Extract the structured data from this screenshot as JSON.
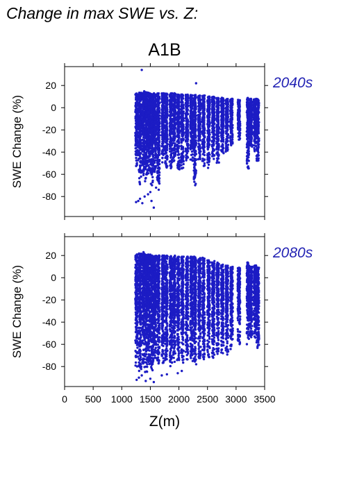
{
  "page": {
    "title": "Change in max SWE vs. Z:",
    "scenario": "A1B"
  },
  "colors": {
    "points": "#1c1cc4",
    "panel_label": "#2323b4",
    "axis": "#000000"
  },
  "chart_data": [
    {
      "type": "scatter",
      "panel_label": "2040s",
      "xlabel": "",
      "ylabel": "SWE Change (%)",
      "xlim": [
        0,
        3500
      ],
      "ylim": [
        -98,
        37
      ],
      "xticks": [
        0,
        500,
        1000,
        1500,
        2000,
        2500,
        3000,
        3500
      ],
      "yticks": [
        20,
        0,
        -20,
        -40,
        -60,
        -80
      ],
      "show_x_tick_labels": false,
      "grid": false,
      "columns": [
        {
          "x": 1260,
          "ymin": -55,
          "ymax": 13
        },
        {
          "x": 1320,
          "ymin": -70,
          "ymax": 14
        },
        {
          "x": 1380,
          "ymin": -62,
          "ymax": 15
        },
        {
          "x": 1430,
          "ymin": -68,
          "ymax": 14
        },
        {
          "x": 1480,
          "ymin": -60,
          "ymax": 14
        },
        {
          "x": 1530,
          "ymin": -70,
          "ymax": 13
        },
        {
          "x": 1580,
          "ymin": -60,
          "ymax": 13
        },
        {
          "x": 1640,
          "ymin": -75,
          "ymax": 13
        },
        {
          "x": 1720,
          "ymin": -50,
          "ymax": 13
        },
        {
          "x": 1780,
          "ymin": -55,
          "ymax": 13
        },
        {
          "x": 1860,
          "ymin": -55,
          "ymax": 13
        },
        {
          "x": 1920,
          "ymin": -50,
          "ymax": 13
        },
        {
          "x": 1990,
          "ymin": -58,
          "ymax": 12
        },
        {
          "x": 2060,
          "ymin": -56,
          "ymax": 12
        },
        {
          "x": 2140,
          "ymin": -50,
          "ymax": 12
        },
        {
          "x": 2220,
          "ymin": -50,
          "ymax": 12
        },
        {
          "x": 2280,
          "ymin": -70,
          "ymax": 12
        },
        {
          "x": 2360,
          "ymin": -50,
          "ymax": 11
        },
        {
          "x": 2430,
          "ymin": -55,
          "ymax": 11
        },
        {
          "x": 2520,
          "ymin": -55,
          "ymax": 10
        },
        {
          "x": 2600,
          "ymin": -47,
          "ymax": 10
        },
        {
          "x": 2680,
          "ymin": -50,
          "ymax": 9
        },
        {
          "x": 2760,
          "ymin": -42,
          "ymax": 9
        },
        {
          "x": 2840,
          "ymin": -40,
          "ymax": 8
        },
        {
          "x": 2920,
          "ymin": -35,
          "ymax": 8
        },
        {
          "x": 3050,
          "ymin": -30,
          "ymax": 7
        },
        {
          "x": 3210,
          "ymin": -55,
          "ymax": 9
        },
        {
          "x": 3260,
          "ymin": -38,
          "ymax": 8
        },
        {
          "x": 3330,
          "ymin": -40,
          "ymax": 8
        },
        {
          "x": 3380,
          "ymin": -50,
          "ymax": 8
        }
      ],
      "outliers": [
        {
          "x": 1350,
          "y": 34
        },
        {
          "x": 2300,
          "y": 22
        },
        {
          "x": 1250,
          "y": -85
        },
        {
          "x": 1290,
          "y": -84
        },
        {
          "x": 1320,
          "y": -82
        },
        {
          "x": 1360,
          "y": -86
        },
        {
          "x": 1400,
          "y": -80
        },
        {
          "x": 1460,
          "y": -78
        },
        {
          "x": 1520,
          "y": -84
        },
        {
          "x": 1560,
          "y": -90
        },
        {
          "x": 1600,
          "y": -72
        },
        {
          "x": 1500,
          "y": -76
        }
      ]
    },
    {
      "type": "scatter",
      "panel_label": "2080s",
      "xlabel": "Z(m)",
      "ylabel": "SWE Change (%)",
      "xlim": [
        0,
        3500
      ],
      "ylim": [
        -98,
        37
      ],
      "xticks": [
        0,
        500,
        1000,
        1500,
        2000,
        2500,
        3000,
        3500
      ],
      "xtick_labels": [
        "0",
        "500",
        "1000",
        "1500",
        "2000",
        "2500",
        "3000",
        "3500"
      ],
      "yticks": [
        20,
        0,
        -20,
        -40,
        -60,
        -80
      ],
      "show_x_tick_labels": true,
      "grid": false,
      "columns": [
        {
          "x": 1260,
          "ymin": -80,
          "ymax": 21
        },
        {
          "x": 1320,
          "ymin": -85,
          "ymax": 22
        },
        {
          "x": 1380,
          "ymin": -82,
          "ymax": 22
        },
        {
          "x": 1430,
          "ymin": -85,
          "ymax": 21
        },
        {
          "x": 1480,
          "ymin": -80,
          "ymax": 21
        },
        {
          "x": 1530,
          "ymin": -85,
          "ymax": 20
        },
        {
          "x": 1580,
          "ymin": -80,
          "ymax": 20
        },
        {
          "x": 1640,
          "ymin": -80,
          "ymax": 20
        },
        {
          "x": 1720,
          "ymin": -80,
          "ymax": 20
        },
        {
          "x": 1780,
          "ymin": -78,
          "ymax": 20
        },
        {
          "x": 1860,
          "ymin": -80,
          "ymax": 20
        },
        {
          "x": 1920,
          "ymin": -76,
          "ymax": 20
        },
        {
          "x": 1990,
          "ymin": -80,
          "ymax": 19
        },
        {
          "x": 2060,
          "ymin": -78,
          "ymax": 19
        },
        {
          "x": 2140,
          "ymin": -75,
          "ymax": 19
        },
        {
          "x": 2220,
          "ymin": -76,
          "ymax": 19
        },
        {
          "x": 2280,
          "ymin": -80,
          "ymax": 19
        },
        {
          "x": 2360,
          "ymin": -75,
          "ymax": 18
        },
        {
          "x": 2430,
          "ymin": -75,
          "ymax": 18
        },
        {
          "x": 2520,
          "ymin": -72,
          "ymax": 16
        },
        {
          "x": 2600,
          "ymin": -75,
          "ymax": 15
        },
        {
          "x": 2680,
          "ymin": -70,
          "ymax": 14
        },
        {
          "x": 2760,
          "ymin": -68,
          "ymax": 12
        },
        {
          "x": 2840,
          "ymin": -70,
          "ymax": 11
        },
        {
          "x": 2920,
          "ymin": -65,
          "ymax": 10
        },
        {
          "x": 3050,
          "ymin": -60,
          "ymax": 9
        },
        {
          "x": 3210,
          "ymin": -60,
          "ymax": 14
        },
        {
          "x": 3260,
          "ymin": -55,
          "ymax": 10
        },
        {
          "x": 3330,
          "ymin": -55,
          "ymax": 11
        },
        {
          "x": 3380,
          "ymin": -68,
          "ymax": 10
        }
      ],
      "outliers": [
        {
          "x": 1260,
          "y": -92
        },
        {
          "x": 1300,
          "y": -90
        },
        {
          "x": 1350,
          "y": -88
        },
        {
          "x": 1420,
          "y": -93
        },
        {
          "x": 1500,
          "y": -91
        },
        {
          "x": 1560,
          "y": -94
        },
        {
          "x": 1700,
          "y": -88
        },
        {
          "x": 1790,
          "y": -87
        },
        {
          "x": 1980,
          "y": -86
        },
        {
          "x": 2050,
          "y": -84
        },
        {
          "x": 1380,
          "y": 23
        }
      ]
    }
  ]
}
